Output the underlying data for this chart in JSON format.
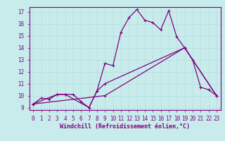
{
  "xlabel": "Windchill (Refroidissement éolien,°C)",
  "bg_color": "#c8ecec",
  "line_color": "#800080",
  "grid_color": "#b8dede",
  "xlim": [
    -0.5,
    23.5
  ],
  "ylim": [
    8.8,
    17.4
  ],
  "xticks": [
    0,
    1,
    2,
    3,
    4,
    5,
    6,
    7,
    8,
    9,
    10,
    11,
    12,
    13,
    14,
    15,
    16,
    17,
    18,
    19,
    20,
    21,
    22,
    23
  ],
  "yticks": [
    9,
    10,
    11,
    12,
    13,
    14,
    15,
    16,
    17
  ],
  "line1_x": [
    0,
    1,
    2,
    3,
    4,
    5,
    6,
    7,
    8,
    9,
    10,
    11,
    12,
    13,
    14,
    15,
    16,
    17,
    18,
    19,
    20,
    21,
    22,
    23
  ],
  "line1_y": [
    9.3,
    9.8,
    9.7,
    10.1,
    10.1,
    10.1,
    9.5,
    9.0,
    10.4,
    12.7,
    12.5,
    15.3,
    16.5,
    17.2,
    16.3,
    16.1,
    15.5,
    17.1,
    14.9,
    14.0,
    13.0,
    10.7,
    10.5,
    10.0
  ],
  "line2_x": [
    0,
    3,
    4,
    7,
    8,
    9,
    19,
    23
  ],
  "line2_y": [
    9.3,
    10.1,
    10.1,
    9.0,
    10.4,
    11.0,
    14.0,
    10.0
  ],
  "line3_x": [
    0,
    9,
    19,
    23
  ],
  "line3_y": [
    9.3,
    10.0,
    14.0,
    10.0
  ],
  "tick_fontsize": 5.5,
  "xlabel_fontsize": 6.0
}
